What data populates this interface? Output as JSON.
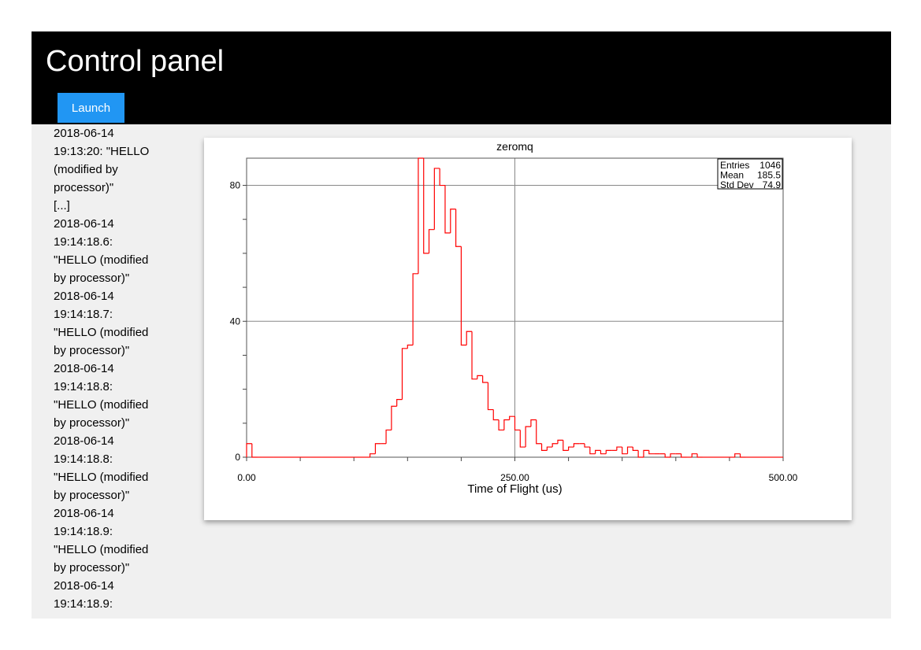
{
  "header": {
    "title": "Control panel",
    "launch_label": "Launch"
  },
  "log": [
    "2018-06-14",
    "19:13:20: \"HELLO",
    "(modified by",
    "processor)\"",
    "[...]",
    "2018-06-14",
    "19:14:18.6:",
    "\"HELLO (modified",
    "by processor)\"",
    "2018-06-14",
    "19:14:18.7:",
    "\"HELLO (modified",
    "by processor)\"",
    "2018-06-14",
    "19:14:18.8:",
    "\"HELLO (modified",
    "by processor)\"",
    "2018-06-14",
    "19:14:18.8:",
    "\"HELLO (modified",
    "by processor)\"",
    "2018-06-14",
    "19:14:18.9:",
    "\"HELLO (modified",
    "by processor)\"",
    "2018-06-14",
    "19:14:18.9:"
  ],
  "chart_data": {
    "type": "histogram",
    "title": "zeromq",
    "xlabel": "Time of Flight (us)",
    "ylabel": "",
    "xlim": [
      0,
      500
    ],
    "ylim": [
      0,
      88
    ],
    "x_ticks": [
      "0.00",
      "250.00",
      "500.00"
    ],
    "x_tick_values": [
      0,
      250,
      500
    ],
    "y_ticks": [
      "0",
      "40",
      "80"
    ],
    "y_tick_values": [
      0,
      40,
      80
    ],
    "grid": true,
    "color": "#ff0000",
    "bin_width": 5,
    "values": [
      4,
      0,
      0,
      0,
      0,
      0,
      0,
      0,
      0,
      0,
      0,
      0,
      0,
      0,
      0,
      0,
      0,
      0,
      0,
      0,
      0,
      0,
      0,
      1,
      4,
      4,
      8,
      15,
      17,
      32,
      33,
      54,
      88,
      60,
      67,
      85,
      80,
      66,
      73,
      62,
      33,
      37,
      23,
      24,
      22,
      14,
      11,
      8,
      11,
      12,
      8,
      3,
      9,
      11,
      4,
      2,
      3,
      4,
      5,
      2,
      3,
      4,
      4,
      3,
      1,
      2,
      1,
      2,
      2,
      3,
      1,
      3,
      2,
      0,
      2,
      1,
      1,
      1,
      0,
      1,
      1,
      0,
      0,
      1,
      0,
      0,
      0,
      0,
      0,
      0,
      0,
      1,
      0,
      0,
      0,
      0,
      0,
      0,
      0,
      0
    ],
    "stats": {
      "entries_label": "Entries",
      "entries": "1046",
      "mean_label": "Mean",
      "mean": "185.5",
      "std_label": "Std Dev",
      "std": "74.9"
    }
  }
}
